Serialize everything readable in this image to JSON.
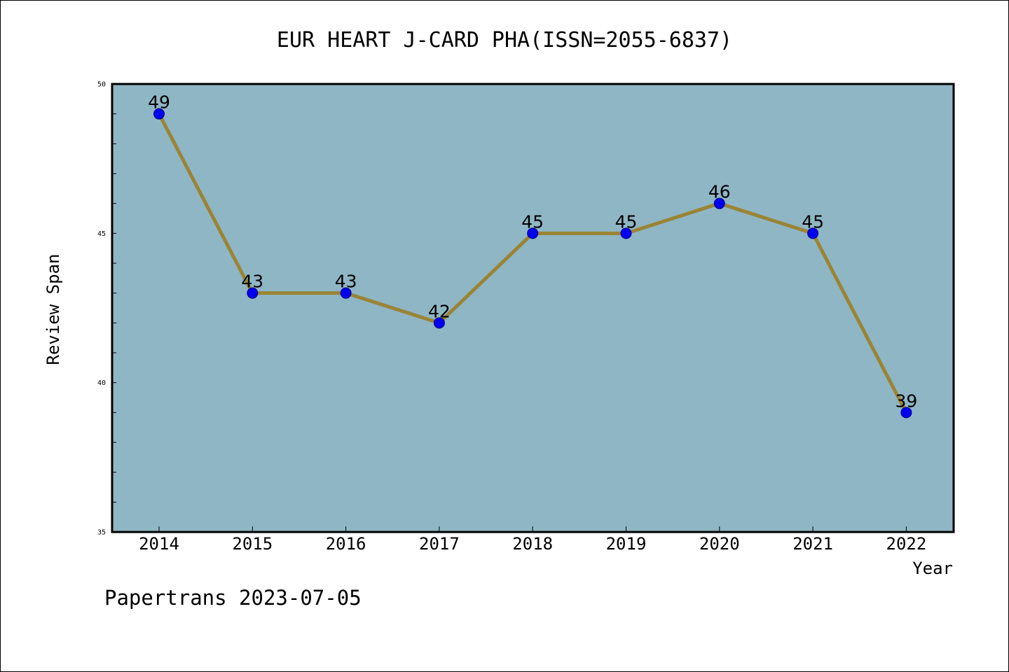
{
  "chart_data": {
    "type": "line",
    "title": "EUR HEART J-CARD PHA(ISSN=2055-6837)",
    "xlabel": "Year",
    "ylabel": "Review Span",
    "categories": [
      "2014",
      "2015",
      "2016",
      "2017",
      "2018",
      "2019",
      "2020",
      "2021",
      "2022"
    ],
    "series": [
      {
        "values": [
          49,
          43,
          43,
          42,
          45,
          45,
          46,
          45,
          39
        ]
      }
    ],
    "data_labels": [
      "49",
      "43",
      "43",
      "42",
      "45",
      "45",
      "46",
      "45",
      "39"
    ],
    "ylim": [
      35,
      50
    ],
    "yticks": [
      "35",
      "40",
      "45",
      "50"
    ],
    "minor_tick_step": 1,
    "grid": false,
    "colors": {
      "plot_background": "#8fb6c5",
      "line": "#9a8434",
      "marker": "#0000ee",
      "marker_edge": "#00008b"
    }
  },
  "footer": {
    "watermark": "Papertrans 2023-07-05"
  }
}
